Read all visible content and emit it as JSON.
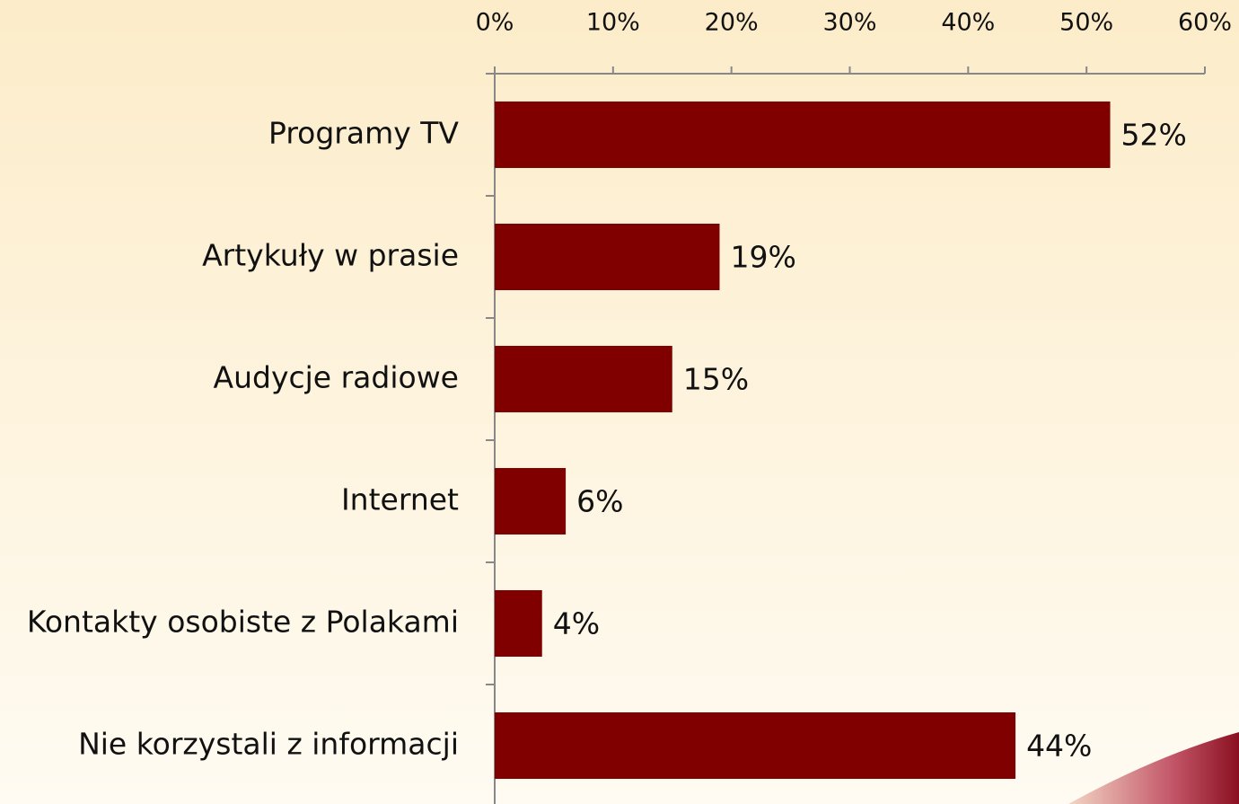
{
  "chart_data": {
    "type": "bar",
    "orientation": "horizontal",
    "categories": [
      "Programy TV",
      "Artykuły w prasie",
      "Audycje radiowe",
      "Internet",
      "Kontakty osobiste z Polakami",
      "Nie korzystali z informacji"
    ],
    "values": [
      52,
      19,
      15,
      6,
      4,
      44
    ],
    "value_labels": [
      "52%",
      "19%",
      "15%",
      "6%",
      "4%",
      "44%"
    ],
    "color": "#800000",
    "xlim": [
      0,
      60
    ],
    "xticks": [
      {
        "value": 0,
        "label": "0%"
      },
      {
        "value": 10,
        "label": "10%"
      },
      {
        "value": 20,
        "label": "20%"
      },
      {
        "value": 30,
        "label": "30%"
      },
      {
        "value": 40,
        "label": "40%"
      },
      {
        "value": 50,
        "label": "50%"
      },
      {
        "value": 60,
        "label": "60%"
      }
    ],
    "grid": false
  }
}
